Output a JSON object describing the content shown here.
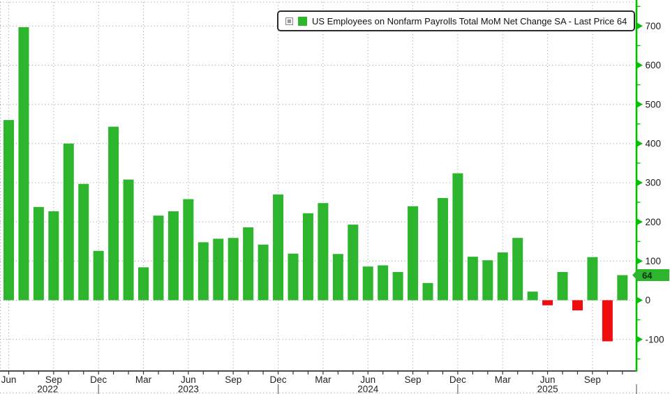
{
  "chart_data": {
    "type": "bar",
    "title": "",
    "legend_label": "US Employees on Nonfarm Payrolls Total MoM Net Change SA - Last Price 64",
    "last_price": 64,
    "last_price_label": "64",
    "categories": [
      "Jun 2022",
      "Jul 2022",
      "Aug 2022",
      "Sep 2022",
      "Oct 2022",
      "Nov 2022",
      "Dec 2022",
      "Jan 2023",
      "Feb 2023",
      "Mar 2023",
      "Apr 2023",
      "May 2023",
      "Jun 2023",
      "Jul 2023",
      "Aug 2023",
      "Sep 2023",
      "Oct 2023",
      "Nov 2023",
      "Dec 2023",
      "Jan 2024",
      "Feb 2024",
      "Mar 2024",
      "Apr 2024",
      "May 2024",
      "Jun 2024",
      "Jul 2024",
      "Aug 2024",
      "Sep 2024",
      "Oct 2024",
      "Nov 2024",
      "Dec 2024",
      "Jan 2025",
      "Feb 2025",
      "Mar 2025",
      "Apr 2025",
      "May 2025",
      "Jun 2025",
      "Jul 2025",
      "Aug 2025",
      "Sep 2025",
      "Oct 2025",
      "Nov 2025"
    ],
    "values": [
      460,
      697,
      238,
      227,
      400,
      297,
      126,
      443,
      308,
      84,
      216,
      227,
      258,
      148,
      157,
      159,
      186,
      142,
      270,
      119,
      222,
      248,
      118,
      193,
      86,
      89,
      72,
      240,
      44,
      261,
      324,
      111,
      102,
      122,
      159,
      22,
      -13,
      72,
      -26,
      110,
      -105,
      64
    ],
    "x_tick_labels": [
      "Jun",
      "Sep",
      "Dec",
      "Mar",
      "Jun",
      "Sep",
      "Dec",
      "Mar",
      "Jun",
      "Sep",
      "Dec",
      "Mar",
      "Jun",
      "Sep"
    ],
    "x_tick_every_months": 3,
    "years": [
      {
        "label": "2022",
        "anchor_index": 2.6
      },
      {
        "label": "2023",
        "anchor_index": 12
      },
      {
        "label": "2024",
        "anchor_index": 24
      },
      {
        "label": "2025",
        "anchor_index": 36
      }
    ],
    "year_separator_indices": [
      6,
      18,
      30
    ],
    "y_axis": {
      "side": "right",
      "ticks": [
        -100,
        0,
        100,
        200,
        300,
        400,
        500,
        600,
        700
      ],
      "minor_step": 50,
      "ylim": [
        -187,
        765
      ]
    },
    "grid": true,
    "legend_position": "top-center",
    "colors": {
      "bar_positive": "#2eb52e",
      "bar_negative": "#ee0e0e",
      "axis_green": "#00c000",
      "grid": "#9a9aa0",
      "axis_text": "#1a1a1a",
      "month_text": "#222222",
      "x_axis_line": "#333333",
      "year_separator": "#666666",
      "tag_bg": "#2eb52e",
      "tag_text": "#0b2e0b"
    }
  }
}
